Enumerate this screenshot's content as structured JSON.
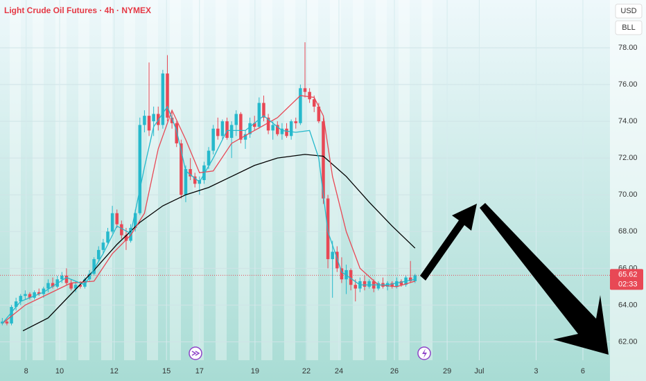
{
  "chart_data": {
    "type": "candlestick",
    "title": "Light Crude Oil Futures · 4h · NYMEX",
    "currency": "USD",
    "unit": "BLL",
    "last_price": {
      "value": 65.62,
      "label": "65.62"
    },
    "countdown": "02:33",
    "up_color": "#26b9cc",
    "down_color": "#e84855",
    "x": [
      0,
      1,
      2,
      3,
      4,
      5,
      6,
      7,
      8,
      9,
      10,
      11,
      12,
      13,
      14,
      15,
      16,
      17,
      18,
      19,
      20,
      21,
      22,
      23,
      24,
      25,
      26,
      27,
      28,
      29,
      30,
      31,
      32,
      33,
      34,
      35,
      36,
      37,
      38,
      39,
      40,
      41,
      42,
      43,
      44,
      45,
      46,
      47,
      48,
      49,
      50,
      51,
      52,
      53,
      54,
      55,
      56,
      57,
      58,
      59,
      60,
      61,
      62,
      63,
      64,
      65,
      66,
      67,
      68,
      69,
      70,
      71,
      72,
      73,
      74,
      75,
      76,
      77,
      78,
      79,
      80,
      81,
      82,
      83,
      84,
      85,
      86,
      87,
      88,
      89,
      90
    ],
    "open": [
      63.0,
      63.1,
      63.0,
      63.9,
      64.2,
      64.5,
      64.6,
      64.4,
      64.7,
      64.6,
      64.9,
      65.2,
      65.0,
      65.4,
      65.6,
      65.2,
      64.9,
      65.1,
      65.0,
      65.4,
      65.7,
      66.5,
      67.0,
      67.4,
      68.0,
      69.0,
      68.4,
      67.8,
      67.5,
      68.2,
      69.0,
      73.8,
      74.3,
      74.0,
      74.4,
      73.8,
      76.6,
      74.2,
      73.9,
      72.8,
      70.0,
      71.4,
      71.0,
      70.6,
      70.8,
      71.6,
      72.4,
      73.6,
      73.2,
      74.0,
      73.1,
      73.8,
      74.4,
      73.0,
      73.3,
      73.9,
      73.7,
      75.0,
      74.2,
      73.5,
      73.8,
      73.3,
      73.6,
      73.2,
      74.0,
      73.9,
      75.8,
      75.6,
      75.2,
      74.8,
      74.0,
      69.8,
      66.5,
      66.9,
      66.0,
      65.4,
      65.9,
      65.1,
      64.9,
      65.3,
      65.0,
      65.3,
      64.9,
      65.2,
      65.0,
      65.2,
      65.0,
      65.3,
      65.1,
      65.5,
      65.3
    ],
    "high": [
      63.3,
      63.2,
      64.0,
      64.4,
      64.6,
      64.8,
      64.7,
      64.8,
      64.9,
      65.0,
      65.4,
      65.5,
      65.6,
      65.8,
      66.0,
      65.4,
      65.3,
      65.3,
      65.5,
      65.9,
      66.6,
      67.2,
      67.6,
      68.2,
      69.4,
      69.2,
      68.6,
      68.2,
      68.4,
      69.2,
      74.2,
      74.6,
      77.2,
      74.8,
      74.8,
      76.8,
      77.6,
      74.5,
      74.0,
      73.0,
      71.6,
      72.0,
      71.2,
      71.0,
      71.8,
      72.6,
      73.8,
      74.2,
      74.1,
      74.2,
      74.0,
      74.6,
      74.5,
      73.5,
      74.2,
      74.3,
      75.3,
      75.4,
      74.4,
      74.0,
      74.0,
      73.9,
      73.9,
      74.1,
      74.2,
      76.0,
      78.3,
      75.8,
      75.4,
      75.0,
      74.2,
      70.0,
      67.5,
      67.2,
      66.6,
      66.2,
      66.0,
      65.4,
      65.5,
      65.6,
      65.4,
      65.4,
      65.3,
      65.5,
      65.3,
      65.3,
      65.5,
      65.4,
      65.6,
      66.4,
      65.7
    ],
    "low": [
      62.9,
      62.9,
      62.9,
      63.7,
      64.0,
      64.3,
      64.3,
      64.3,
      64.5,
      64.4,
      64.7,
      64.9,
      64.9,
      65.2,
      65.1,
      64.8,
      64.7,
      64.9,
      64.9,
      65.3,
      65.6,
      66.4,
      66.8,
      67.3,
      67.9,
      68.2,
      67.6,
      67.0,
      67.4,
      68.0,
      68.9,
      73.4,
      73.2,
      73.2,
      73.5,
      73.6,
      74.0,
      73.6,
      72.6,
      69.8,
      69.6,
      70.8,
      70.4,
      70.0,
      70.6,
      71.4,
      72.2,
      73.0,
      73.0,
      73.0,
      72.0,
      73.2,
      72.8,
      72.5,
      73.1,
      73.5,
      73.6,
      74.0,
      73.3,
      73.0,
      73.2,
      73.0,
      73.1,
      73.0,
      73.6,
      73.8,
      75.3,
      75.0,
      74.5,
      73.9,
      69.5,
      66.0,
      64.4,
      65.8,
      65.2,
      64.6,
      64.8,
      64.2,
      64.7,
      64.8,
      64.9,
      64.7,
      64.8,
      64.9,
      64.8,
      64.9,
      64.9,
      65.0,
      65.0,
      65.2,
      65.2
    ],
    "close": [
      63.1,
      63.0,
      63.9,
      64.2,
      64.5,
      64.6,
      64.4,
      64.7,
      64.6,
      64.9,
      65.2,
      65.0,
      65.4,
      65.6,
      65.2,
      64.9,
      65.1,
      65.0,
      65.4,
      65.7,
      66.5,
      67.0,
      67.4,
      68.0,
      69.0,
      68.4,
      67.8,
      67.5,
      68.2,
      69.0,
      73.8,
      74.3,
      73.5,
      74.4,
      73.8,
      76.6,
      74.2,
      73.9,
      72.8,
      70.0,
      71.4,
      71.0,
      70.6,
      70.8,
      71.6,
      72.4,
      73.6,
      73.2,
      74.0,
      73.1,
      73.8,
      74.4,
      73.0,
      73.3,
      73.9,
      73.7,
      75.0,
      74.2,
      73.5,
      73.8,
      73.3,
      73.6,
      73.2,
      74.0,
      73.9,
      75.8,
      75.6,
      75.2,
      74.8,
      74.0,
      69.8,
      66.5,
      66.9,
      66.0,
      65.4,
      65.9,
      65.1,
      64.9,
      65.3,
      65.0,
      65.3,
      64.9,
      65.2,
      65.0,
      65.2,
      65.0,
      65.3,
      65.1,
      65.5,
      65.3,
      65.62
    ],
    "lines": [
      {
        "color": "#000000",
        "x": [
          4.5,
          10,
          15,
          20,
          25,
          30,
          35,
          40,
          45,
          50,
          55,
          60,
          66,
          70,
          75,
          80,
          85,
          90
        ],
        "values": [
          62.6,
          63.3,
          64.6,
          65.9,
          67.3,
          68.5,
          69.4,
          70.0,
          70.4,
          71.0,
          71.6,
          72.0,
          72.2,
          72.1,
          71.0,
          69.6,
          68.3,
          67.1
        ]
      },
      {
        "color": "#e84855",
        "x": [
          0,
          5,
          10,
          15,
          20,
          24,
          28,
          31,
          34,
          37,
          40,
          43,
          46,
          50,
          55,
          60,
          65,
          68,
          70,
          72,
          75,
          78,
          82,
          86,
          90
        ],
        "values": [
          63.0,
          64.0,
          64.6,
          65.2,
          65.3,
          66.8,
          67.8,
          69.0,
          72.5,
          74.6,
          73.0,
          71.2,
          71.3,
          72.8,
          73.5,
          74.2,
          75.4,
          75.3,
          74.3,
          71.0,
          68.0,
          66.0,
          65.1,
          65.0,
          65.3
        ]
      },
      {
        "color": "#26b9cc",
        "x": [
          0,
          4,
          9,
          14,
          18,
          22,
          25,
          28,
          31,
          33,
          36,
          38,
          40,
          43,
          46,
          49,
          53,
          57,
          61,
          64,
          67,
          69,
          71,
          74,
          78,
          84,
          90
        ],
        "values": [
          63.0,
          64.2,
          64.7,
          65.5,
          65.1,
          66.8,
          68.3,
          67.9,
          71.5,
          73.7,
          74.8,
          73.5,
          71.3,
          70.7,
          72.0,
          73.5,
          73.5,
          74.3,
          73.5,
          73.4,
          73.5,
          72.0,
          68.0,
          65.8,
          65.1,
          65.1,
          65.4
        ]
      }
    ],
    "xlim": [
      -0.5,
      132.5
    ],
    "xticks": [
      {
        "value": 5.2,
        "label": "8"
      },
      {
        "value": 12.5,
        "label": "10"
      },
      {
        "value": 24.4,
        "label": "12"
      },
      {
        "value": 35.8,
        "label": "15"
      },
      {
        "value": 43.0,
        "label": "17"
      },
      {
        "value": 55.1,
        "label": "19"
      },
      {
        "value": 66.3,
        "label": "22"
      },
      {
        "value": 73.4,
        "label": "24"
      },
      {
        "value": 85.5,
        "label": "26"
      },
      {
        "value": 97,
        "label": "29"
      },
      {
        "value": 104,
        "label": "Jul"
      },
      {
        "value": 116.4,
        "label": "3"
      },
      {
        "value": 126.6,
        "label": "6"
      }
    ],
    "ylim": [
      61.0,
      80.6
    ],
    "yticks": [
      {
        "value": 62,
        "label": "62.00"
      },
      {
        "value": 64,
        "label": "64.00"
      },
      {
        "value": 66,
        "label": "66.00"
      },
      {
        "value": 68,
        "label": "68.00"
      },
      {
        "value": 70,
        "label": "70.00"
      },
      {
        "value": 72,
        "label": "72.00"
      },
      {
        "value": 74,
        "label": "74.00"
      },
      {
        "value": 76,
        "label": "76.00"
      },
      {
        "value": 78,
        "label": "78.00"
      }
    ],
    "grid": true
  }
}
